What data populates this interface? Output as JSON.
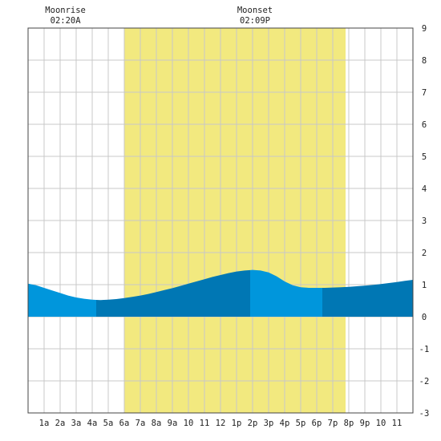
{
  "chart_data": {
    "type": "area",
    "title": "",
    "xlabel": "",
    "ylabel": "",
    "xlim": [
      0,
      24
    ],
    "ylim": [
      -3,
      9
    ],
    "grid": true,
    "x_tick_labels": [
      "1a",
      "2a",
      "3a",
      "4a",
      "5a",
      "6a",
      "7a",
      "8a",
      "9a",
      "10",
      "11",
      "12",
      "1p",
      "2p",
      "3p",
      "4p",
      "5p",
      "6p",
      "7p",
      "8p",
      "9p",
      "10",
      "11"
    ],
    "y_ticks": [
      -3,
      -2,
      -1,
      0,
      1,
      2,
      3,
      4,
      5,
      6,
      7,
      8,
      9
    ],
    "daylight_band": {
      "start_hour": 6.0,
      "end_hour": 19.8,
      "color": "#f2e97f"
    },
    "annotations": [
      {
        "label": "Moonrise",
        "time": "02:20A",
        "hour": 2.33
      },
      {
        "label": "Moonset",
        "time": "02:09P",
        "hour": 14.15
      }
    ],
    "series": [
      {
        "x": [
          0,
          0.5,
          1,
          1.5,
          2,
          2.5,
          3,
          3.5,
          4,
          4.5,
          5,
          5.5,
          6,
          6.5,
          7,
          7.5,
          8,
          8.5,
          9,
          9.5,
          10,
          10.5,
          11,
          11.5,
          12,
          12.5,
          13,
          13.5,
          14,
          14.5,
          15,
          15.5,
          16,
          16.5,
          17,
          17.5,
          18,
          18.5,
          19,
          19.5,
          20,
          20.5,
          21,
          21.5,
          22,
          22.5,
          23,
          23.5,
          24
        ],
        "values": [
          1.03,
          0.98,
          0.9,
          0.82,
          0.74,
          0.66,
          0.6,
          0.56,
          0.53,
          0.52,
          0.53,
          0.55,
          0.58,
          0.62,
          0.66,
          0.71,
          0.77,
          0.83,
          0.89,
          0.96,
          1.03,
          1.1,
          1.17,
          1.24,
          1.3,
          1.36,
          1.41,
          1.44,
          1.46,
          1.44,
          1.38,
          1.26,
          1.1,
          0.98,
          0.92,
          0.9,
          0.9,
          0.9,
          0.91,
          0.92,
          0.93,
          0.95,
          0.97,
          0.99,
          1.02,
          1.05,
          1.08,
          1.12,
          1.15
        ]
      }
    ],
    "shade_segments": [
      {
        "from": 0,
        "to": 4.25,
        "color": "#0096dc"
      },
      {
        "from": 4.25,
        "to": 13.85,
        "color": "#0077b4"
      },
      {
        "from": 13.85,
        "to": 18.35,
        "color": "#0096dc"
      },
      {
        "from": 18.35,
        "to": 24,
        "color": "#0077b4"
      }
    ],
    "colors": {
      "grid": "#c8c8c8",
      "axis": "#444444"
    }
  }
}
